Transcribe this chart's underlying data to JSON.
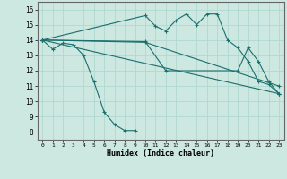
{
  "xlabel": "Humidex (Indice chaleur)",
  "xlim": [
    -0.5,
    23.5
  ],
  "ylim": [
    7.5,
    16.5
  ],
  "xticks": [
    0,
    1,
    2,
    3,
    4,
    5,
    6,
    7,
    8,
    9,
    10,
    11,
    12,
    13,
    14,
    15,
    16,
    17,
    18,
    19,
    20,
    21,
    22,
    23
  ],
  "yticks": [
    8,
    9,
    10,
    11,
    12,
    13,
    14,
    15,
    16
  ],
  "bg_color": "#cce8e0",
  "line_color": "#1a6e6e",
  "grid_color": "#b0d8d0",
  "lines": [
    {
      "x": [
        0,
        1,
        2,
        3,
        4,
        5,
        6,
        7,
        8,
        9
      ],
      "y": [
        14,
        13.4,
        13.8,
        13.7,
        13.0,
        11.3,
        9.3,
        8.5,
        8.1,
        8.1
      ]
    },
    {
      "x": [
        0,
        10,
        11,
        12,
        13,
        14,
        15,
        16,
        17,
        18,
        19,
        20,
        21,
        22,
        23
      ],
      "y": [
        14,
        15.6,
        14.9,
        14.6,
        15.3,
        15.7,
        15.0,
        15.7,
        15.7,
        14.0,
        13.5,
        12.6,
        11.3,
        11.1,
        10.5
      ]
    },
    {
      "x": [
        0,
        23
      ],
      "y": [
        14,
        10.5
      ]
    },
    {
      "x": [
        0,
        10,
        12,
        19,
        20,
        21,
        22,
        23
      ],
      "y": [
        14,
        13.9,
        12.0,
        12.0,
        13.5,
        12.6,
        11.3,
        10.5
      ]
    },
    {
      "x": [
        0,
        10,
        23
      ],
      "y": [
        14,
        13.85,
        11.0
      ]
    }
  ]
}
